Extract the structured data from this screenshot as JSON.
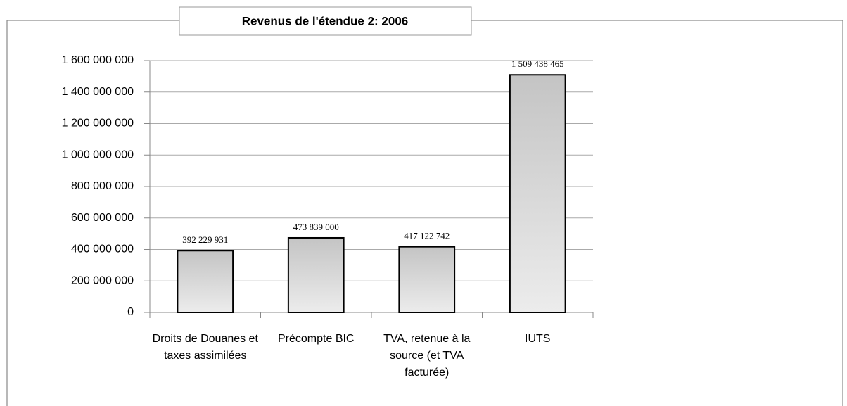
{
  "chart_data": {
    "type": "bar",
    "title": "Revenus de l'étendue 2: 2006",
    "categories": [
      "Droits de Douanes et taxes assimilées",
      "Précompte BIC",
      "TVA, retenue à la source (et TVA facturée)",
      "IUTS"
    ],
    "values": [
      392229931,
      473839000,
      417122742,
      1509438465
    ],
    "value_labels": [
      "392 229 931",
      "473 839 000",
      "417 122 742",
      "1 509 438 465"
    ],
    "color": "#cccccc",
    "ylim": [
      0,
      1600000000
    ],
    "yticks": [
      0,
      {
        "value": 200000000,
        "label": "200 000 000"
      },
      {
        "value": 400000000,
        "label": "400 000 000"
      },
      {
        "value": 600000000,
        "label": "600 000 000"
      },
      {
        "value": 800000000,
        "label": "800 000 000"
      },
      {
        "value": 1000000000,
        "label": "1 000 000 000"
      },
      {
        "value": 1200000000,
        "label": "1 200 000 000"
      },
      {
        "value": 1400000000,
        "label": "1 400 000 000"
      },
      {
        "value": 1600000000,
        "label": "1 600 000 000"
      }
    ],
    "grid": true
  }
}
